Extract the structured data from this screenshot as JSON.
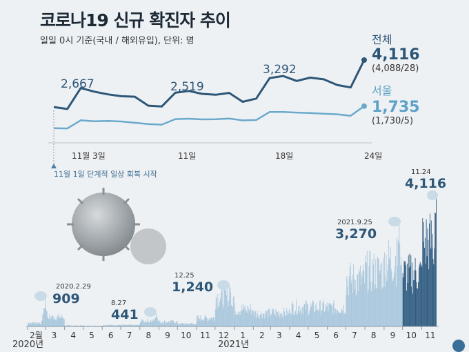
{
  "title": "코로나19 신규 확진자 추이",
  "subtitle": "일일 0시 기준(국내 / 해외유입), 단위: 명",
  "colors": {
    "total": "#2d5677",
    "seoul": "#6aa9cb",
    "bars": "#a9c7dc",
    "bars_recent": "#2f5b80",
    "bubble": "#c9dbe7"
  },
  "top": {
    "series_total": {
      "name": "전체",
      "value_label": "4,116",
      "breakdown": "(4,088/28)"
    },
    "series_seoul": {
      "name": "서울",
      "value_label": "1,735",
      "breakdown": "(1,730/5)"
    },
    "annotations": {
      "a1": "2,667",
      "a2": "2,519",
      "a3": "3,292"
    },
    "ticks": [
      "11월 3일",
      "11일",
      "18일",
      "24일"
    ],
    "note": "11월 1일 단계적 일상 회복 시작"
  },
  "bottom": {
    "annotations": [
      {
        "date": "2020.2.29",
        "value": "909"
      },
      {
        "date": "8.27",
        "value": "441"
      },
      {
        "date": "12.25",
        "value": "1,240"
      },
      {
        "date": "2021.9.25",
        "value": "3,270"
      },
      {
        "date": "11.24",
        "value": "4,116"
      }
    ],
    "months": [
      "2월",
      "3",
      "4",
      "5",
      "6",
      "7",
      "8",
      "9",
      "10",
      "11",
      "12",
      "1",
      "2",
      "3",
      "4",
      "5",
      "6",
      "7",
      "8",
      "9",
      "10",
      "11"
    ],
    "years": [
      "2020년",
      "2021년"
    ]
  },
  "chart_data": [
    {
      "type": "line",
      "title": "",
      "x": [
        "11.1",
        "11.2",
        "11.3",
        "11.4",
        "11.5",
        "11.6",
        "11.7",
        "11.8",
        "11.9",
        "11.10",
        "11.11",
        "11.12",
        "11.13",
        "11.14",
        "11.15",
        "11.16",
        "11.17",
        "11.18",
        "11.19",
        "11.20",
        "11.21",
        "11.22",
        "11.23",
        "11.24"
      ],
      "xticks": [
        "11월 3일",
        "11일",
        "18일",
        "24일"
      ],
      "series": [
        {
          "name": "전체",
          "values": [
            1686,
            1589,
            2667,
            2482,
            2344,
            2248,
            2224,
            1758,
            1715,
            2425,
            2519,
            2368,
            2324,
            2419,
            1960,
            2125,
            3187,
            3292,
            3034,
            3206,
            3120,
            2827,
            2699,
            4116
          ]
        },
        {
          "name": "서울",
          "values": [
            595,
            582,
            1004,
            953,
            966,
            941,
            876,
            809,
            780,
            1063,
            1085,
            1051,
            1058,
            1091,
            1001,
            1016,
            1436,
            1436,
            1401,
            1379,
            1347,
            1314,
            1237,
            1735
          ]
        }
      ]
    },
    {
      "type": "bar",
      "title": "",
      "x_start": "2020-02-01",
      "x_end": "2021-11-24",
      "annotations": [
        {
          "date": "2020-02-29",
          "value": 909
        },
        {
          "date": "2020-08-27",
          "value": 441
        },
        {
          "date": "2020-12-25",
          "value": 1240
        },
        {
          "date": "2021-09-25",
          "value": 3270
        },
        {
          "date": "2021-11-24",
          "value": 4116
        }
      ],
      "monthly_levels": [
        {
          "month": "2020-02",
          "value": 120
        },
        {
          "month": "2020-03",
          "value": 300
        },
        {
          "month": "2020-04",
          "value": 30
        },
        {
          "month": "2020-05",
          "value": 25
        },
        {
          "month": "2020-06",
          "value": 45
        },
        {
          "month": "2020-07",
          "value": 45
        },
        {
          "month": "2020-08",
          "value": 180
        },
        {
          "month": "2020-09",
          "value": 150
        },
        {
          "month": "2020-10",
          "value": 90
        },
        {
          "month": "2020-11",
          "value": 270
        },
        {
          "month": "2020-12",
          "value": 950
        },
        {
          "month": "2021-01",
          "value": 550
        },
        {
          "month": "2021-02",
          "value": 420
        },
        {
          "month": "2021-03",
          "value": 440
        },
        {
          "month": "2021-04",
          "value": 620
        },
        {
          "month": "2021-05",
          "value": 610
        },
        {
          "month": "2021-06",
          "value": 600
        },
        {
          "month": "2021-07",
          "value": 1500
        },
        {
          "month": "2021-08",
          "value": 1750
        },
        {
          "month": "2021-09",
          "value": 2100
        },
        {
          "month": "2021-10",
          "value": 1700
        },
        {
          "month": "2021-11",
          "value": 2700
        }
      ]
    }
  ]
}
